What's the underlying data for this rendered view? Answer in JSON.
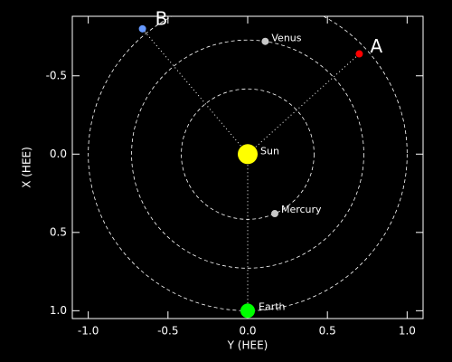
{
  "chart_data": {
    "type": "scatter",
    "xlabel": "Y (HEE)",
    "ylabel": "X (HEE)",
    "xlim": [
      -1.1,
      1.1
    ],
    "ylim": [
      -0.88,
      1.05
    ],
    "y_inverted": true,
    "xticks": [
      {
        "value": -1,
        "label": "-1.0"
      },
      -0.5,
      {
        "value": 0,
        "label": "0.0"
      },
      0.5,
      {
        "value": 1,
        "label": "1.0"
      }
    ],
    "yticks": [
      -0.5,
      {
        "value": 0,
        "label": "0.0"
      },
      0.5,
      {
        "value": 1,
        "label": "1.0"
      }
    ],
    "series": [
      {
        "name": "Sun",
        "color": "#ffff00",
        "x": [
          0
        ],
        "values": [
          0
        ]
      },
      {
        "name": "Mercury",
        "color": "#c8c8c8",
        "x": [
          0.17
        ],
        "values": [
          0.38
        ]
      },
      {
        "name": "Venus",
        "color": "#c8c8c8",
        "x": [
          0.11
        ],
        "values": [
          -0.72
        ]
      },
      {
        "name": "Earth",
        "color": "#00ff00",
        "x": [
          0
        ],
        "values": [
          1.0
        ]
      },
      {
        "name": "A",
        "color": "#ff0000",
        "x": [
          0.7
        ],
        "values": [
          -0.64
        ]
      },
      {
        "name": "B",
        "color": "#6699ff",
        "x": [
          -0.66
        ],
        "values": [
          -0.8
        ]
      }
    ]
  }
}
